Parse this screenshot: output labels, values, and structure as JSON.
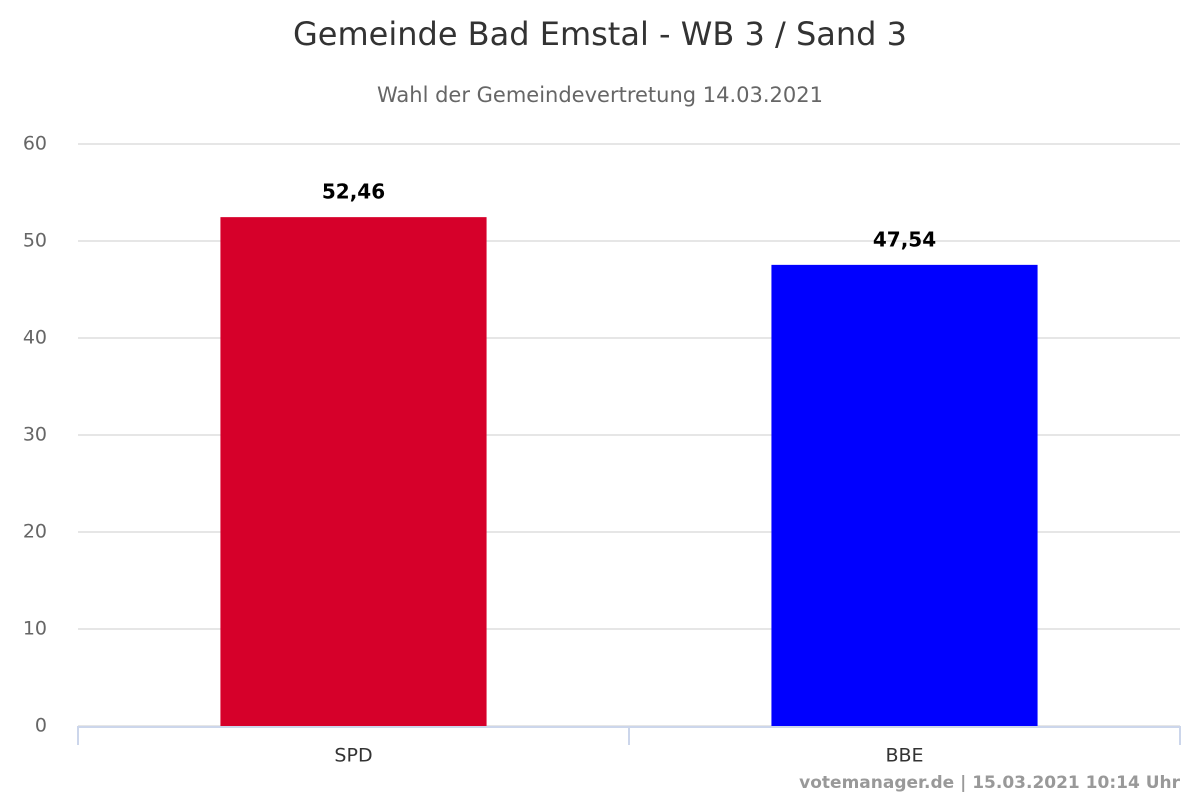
{
  "chart_data": {
    "type": "bar",
    "title": "Gemeinde Bad Emstal - WB 3 / Sand 3",
    "subtitle": "Wahl der Gemeindevertretung 14.03.2021",
    "categories": [
      "SPD",
      "BBE"
    ],
    "values": [
      52.46,
      47.54
    ],
    "value_labels": [
      "52,46",
      "47,54"
    ],
    "colors": [
      "#d6002a",
      "#0000ff"
    ],
    "ylim": [
      0,
      60
    ],
    "yticks": [
      0,
      10,
      20,
      30,
      40,
      50,
      60
    ],
    "grid": true,
    "credits": "votemanager.de | 15.03.2021 10:14 Uhr"
  }
}
